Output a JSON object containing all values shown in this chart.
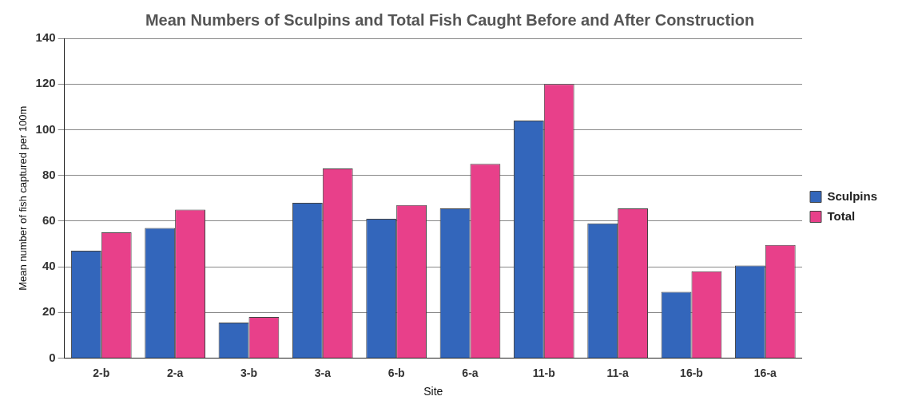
{
  "chart_data": {
    "type": "bar",
    "title": "Mean Numbers of Sculpins and Total Fish Caught Before and After Construction",
    "xlabel": "Site",
    "ylabel": "Mean number of fish captured per 100m",
    "categories": [
      "2-b",
      "2-a",
      "3-b",
      "3-a",
      "6-b",
      "6-a",
      "11-b",
      "11-a",
      "16-b",
      "16-a"
    ],
    "series": [
      {
        "name": "Sculpins",
        "color": "#3366bb",
        "values": [
          47,
          57,
          15.5,
          68,
          61,
          65.5,
          104,
          59,
          29,
          40.5
        ]
      },
      {
        "name": "Total",
        "color": "#e8408a",
        "values": [
          55,
          65,
          18,
          83,
          67,
          85,
          120,
          65.5,
          38,
          49.5
        ]
      }
    ],
    "ylim": [
      0,
      140
    ],
    "yticks": [
      0,
      20,
      40,
      60,
      80,
      100,
      120,
      140
    ],
    "grid": "y",
    "legend": "right"
  }
}
